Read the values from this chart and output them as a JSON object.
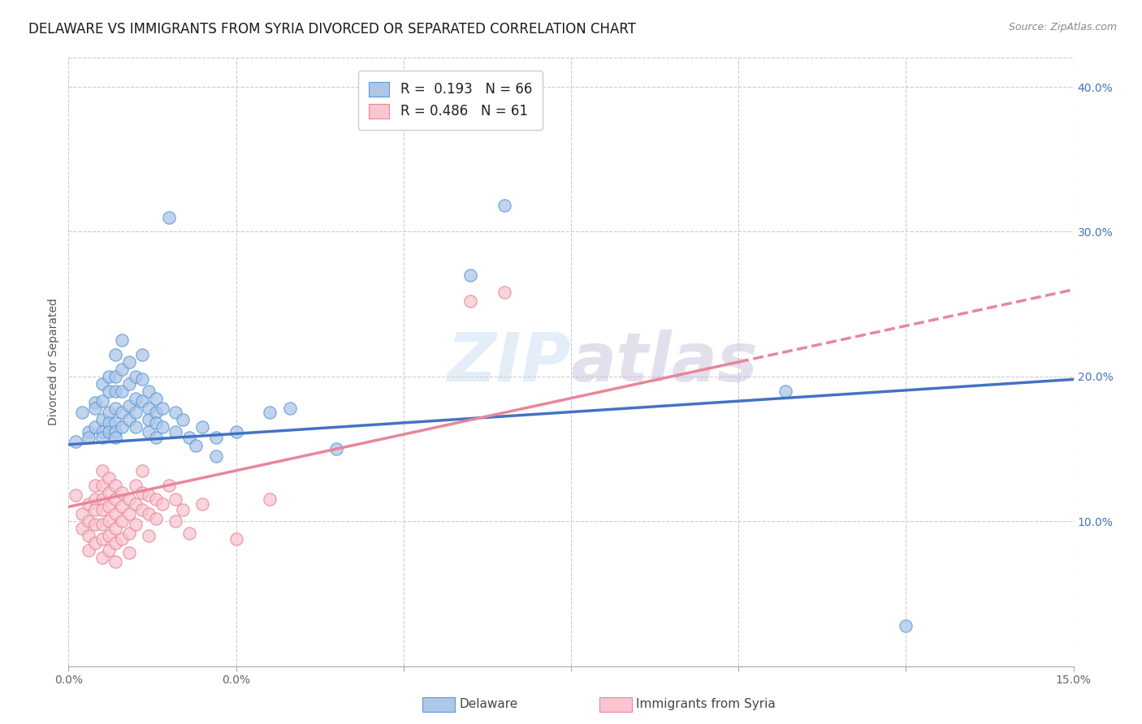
{
  "title": "DELAWARE VS IMMIGRANTS FROM SYRIA DIVORCED OR SEPARATED CORRELATION CHART",
  "source": "Source: ZipAtlas.com",
  "ylabel": "Divorced or Separated",
  "xlim": [
    0.0,
    0.15
  ],
  "ylim": [
    0.0,
    0.42
  ],
  "xtick_positions": [
    0.0,
    0.025,
    0.05,
    0.075,
    0.1,
    0.125,
    0.15
  ],
  "xticklabels_show": {
    "0.0": "0.0%",
    "0.15": "15.0%"
  },
  "ytick_vals": [
    0.1,
    0.2,
    0.3,
    0.4
  ],
  "ytick_labels": [
    "10.0%",
    "20.0%",
    "30.0%",
    "40.0%"
  ],
  "background_color": "#ffffff",
  "watermark": "ZIPatlas",
  "blue_scatter_color": "#aec6e8",
  "blue_edge_color": "#5b9bd5",
  "pink_scatter_color": "#f9c6d0",
  "pink_edge_color": "#e8869a",
  "blue_line_color": "#4472c4",
  "pink_line_color": "#e8869a",
  "grid_color": "#cccccc",
  "title_fontsize": 12,
  "axis_label_fontsize": 10,
  "tick_fontsize": 10,
  "blue_N": 66,
  "pink_N": 61,
  "blue_R": "0.193",
  "pink_R": "0.486",
  "blue_points": [
    [
      0.001,
      0.155
    ],
    [
      0.002,
      0.175
    ],
    [
      0.003,
      0.162
    ],
    [
      0.003,
      0.158
    ],
    [
      0.004,
      0.182
    ],
    [
      0.004,
      0.178
    ],
    [
      0.004,
      0.165
    ],
    [
      0.005,
      0.195
    ],
    [
      0.005,
      0.183
    ],
    [
      0.005,
      0.17
    ],
    [
      0.005,
      0.162
    ],
    [
      0.005,
      0.158
    ],
    [
      0.006,
      0.2
    ],
    [
      0.006,
      0.19
    ],
    [
      0.006,
      0.175
    ],
    [
      0.006,
      0.168
    ],
    [
      0.006,
      0.162
    ],
    [
      0.007,
      0.215
    ],
    [
      0.007,
      0.2
    ],
    [
      0.007,
      0.19
    ],
    [
      0.007,
      0.178
    ],
    [
      0.007,
      0.168
    ],
    [
      0.007,
      0.162
    ],
    [
      0.007,
      0.158
    ],
    [
      0.008,
      0.225
    ],
    [
      0.008,
      0.205
    ],
    [
      0.008,
      0.19
    ],
    [
      0.008,
      0.175
    ],
    [
      0.008,
      0.165
    ],
    [
      0.009,
      0.21
    ],
    [
      0.009,
      0.195
    ],
    [
      0.009,
      0.18
    ],
    [
      0.009,
      0.17
    ],
    [
      0.01,
      0.2
    ],
    [
      0.01,
      0.185
    ],
    [
      0.01,
      0.175
    ],
    [
      0.01,
      0.165
    ],
    [
      0.011,
      0.215
    ],
    [
      0.011,
      0.198
    ],
    [
      0.011,
      0.183
    ],
    [
      0.012,
      0.19
    ],
    [
      0.012,
      0.178
    ],
    [
      0.012,
      0.17
    ],
    [
      0.012,
      0.162
    ],
    [
      0.013,
      0.185
    ],
    [
      0.013,
      0.175
    ],
    [
      0.013,
      0.168
    ],
    [
      0.013,
      0.158
    ],
    [
      0.014,
      0.178
    ],
    [
      0.014,
      0.165
    ],
    [
      0.015,
      0.31
    ],
    [
      0.016,
      0.175
    ],
    [
      0.016,
      0.162
    ],
    [
      0.017,
      0.17
    ],
    [
      0.018,
      0.158
    ],
    [
      0.019,
      0.152
    ],
    [
      0.02,
      0.165
    ],
    [
      0.022,
      0.158
    ],
    [
      0.022,
      0.145
    ],
    [
      0.025,
      0.162
    ],
    [
      0.03,
      0.175
    ],
    [
      0.033,
      0.178
    ],
    [
      0.04,
      0.15
    ],
    [
      0.06,
      0.27
    ],
    [
      0.065,
      0.318
    ],
    [
      0.107,
      0.19
    ],
    [
      0.125,
      0.028
    ]
  ],
  "pink_points": [
    [
      0.001,
      0.118
    ],
    [
      0.002,
      0.105
    ],
    [
      0.002,
      0.095
    ],
    [
      0.003,
      0.112
    ],
    [
      0.003,
      0.1
    ],
    [
      0.003,
      0.09
    ],
    [
      0.003,
      0.08
    ],
    [
      0.004,
      0.125
    ],
    [
      0.004,
      0.115
    ],
    [
      0.004,
      0.108
    ],
    [
      0.004,
      0.098
    ],
    [
      0.004,
      0.085
    ],
    [
      0.005,
      0.135
    ],
    [
      0.005,
      0.125
    ],
    [
      0.005,
      0.115
    ],
    [
      0.005,
      0.108
    ],
    [
      0.005,
      0.098
    ],
    [
      0.005,
      0.088
    ],
    [
      0.005,
      0.075
    ],
    [
      0.006,
      0.13
    ],
    [
      0.006,
      0.12
    ],
    [
      0.006,
      0.11
    ],
    [
      0.006,
      0.1
    ],
    [
      0.006,
      0.09
    ],
    [
      0.006,
      0.08
    ],
    [
      0.007,
      0.125
    ],
    [
      0.007,
      0.115
    ],
    [
      0.007,
      0.105
    ],
    [
      0.007,
      0.095
    ],
    [
      0.007,
      0.085
    ],
    [
      0.007,
      0.072
    ],
    [
      0.008,
      0.12
    ],
    [
      0.008,
      0.11
    ],
    [
      0.008,
      0.1
    ],
    [
      0.008,
      0.088
    ],
    [
      0.009,
      0.115
    ],
    [
      0.009,
      0.105
    ],
    [
      0.009,
      0.092
    ],
    [
      0.009,
      0.078
    ],
    [
      0.01,
      0.125
    ],
    [
      0.01,
      0.112
    ],
    [
      0.01,
      0.098
    ],
    [
      0.011,
      0.135
    ],
    [
      0.011,
      0.12
    ],
    [
      0.011,
      0.108
    ],
    [
      0.012,
      0.118
    ],
    [
      0.012,
      0.105
    ],
    [
      0.012,
      0.09
    ],
    [
      0.013,
      0.115
    ],
    [
      0.013,
      0.102
    ],
    [
      0.014,
      0.112
    ],
    [
      0.015,
      0.125
    ],
    [
      0.016,
      0.115
    ],
    [
      0.016,
      0.1
    ],
    [
      0.017,
      0.108
    ],
    [
      0.018,
      0.092
    ],
    [
      0.02,
      0.112
    ],
    [
      0.025,
      0.088
    ],
    [
      0.03,
      0.115
    ],
    [
      0.06,
      0.252
    ],
    [
      0.065,
      0.258
    ]
  ],
  "blue_line_endpoints": [
    [
      0.0,
      0.153
    ],
    [
      0.15,
      0.198
    ]
  ],
  "pink_solid_endpoints": [
    [
      0.0,
      0.11
    ],
    [
      0.1,
      0.21
    ]
  ],
  "pink_dashed_endpoints": [
    [
      0.1,
      0.21
    ],
    [
      0.15,
      0.26
    ]
  ]
}
